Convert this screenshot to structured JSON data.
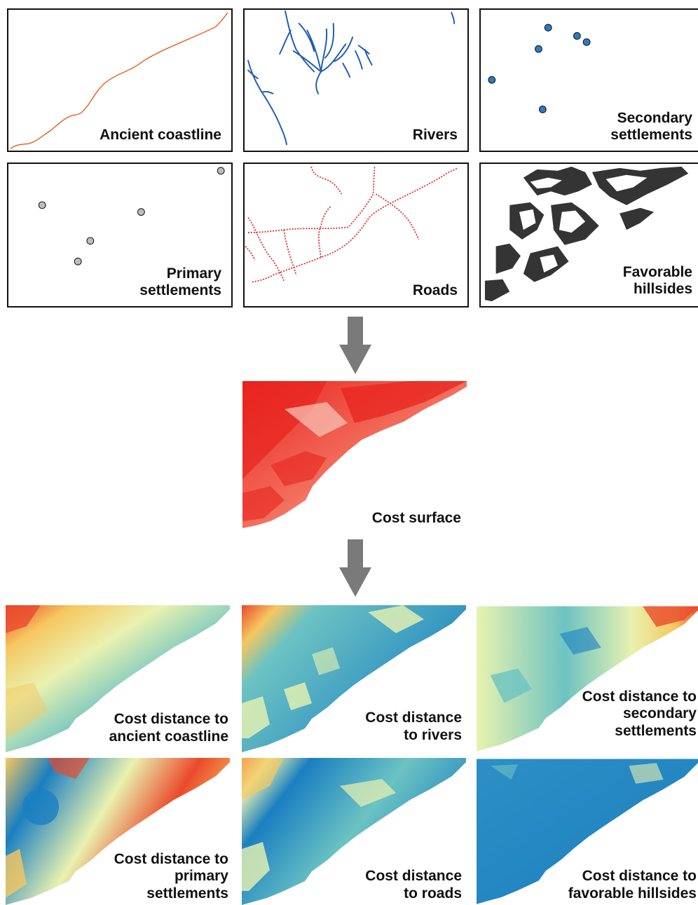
{
  "inputs": {
    "ancient_coastline": {
      "label": "Ancient coastline",
      "color": "#e8632a"
    },
    "rivers": {
      "label": "Rivers",
      "color": "#1f5cb4"
    },
    "secondary_settlements": {
      "label": "Secondary\nsettlements",
      "color": "#2b7bc4"
    },
    "primary_settlements": {
      "label": "Primary\nsettlements",
      "color": "#bdbdbd"
    },
    "roads": {
      "label": "Roads",
      "color": "#e0282a"
    },
    "favorable_hillsides": {
      "label": "Favorable\nhillsides",
      "color": "#111111"
    }
  },
  "cost_surface": {
    "label": "Cost surface",
    "colors": [
      "#e8231f",
      "#f8c9bb"
    ]
  },
  "outputs": {
    "coastline": {
      "label": "Cost distance to\nancient coastline"
    },
    "rivers": {
      "label": "Cost distance\nto rivers"
    },
    "secondary": {
      "label": "Cost distance to\nsecondary\nsettlements"
    },
    "primary": {
      "label": "Cost distance to\nprimary\nsettlements"
    },
    "roads": {
      "label": "Cost distance\nto roads"
    },
    "hillsides": {
      "label": "Cost distance to\nfavorable hillsides"
    }
  },
  "colormap": [
    "#1a7fc1",
    "#6cc3c2",
    "#e9f2b0",
    "#f6c75f",
    "#ea4a2c"
  ],
  "arrow_color": "#7a7a7a"
}
